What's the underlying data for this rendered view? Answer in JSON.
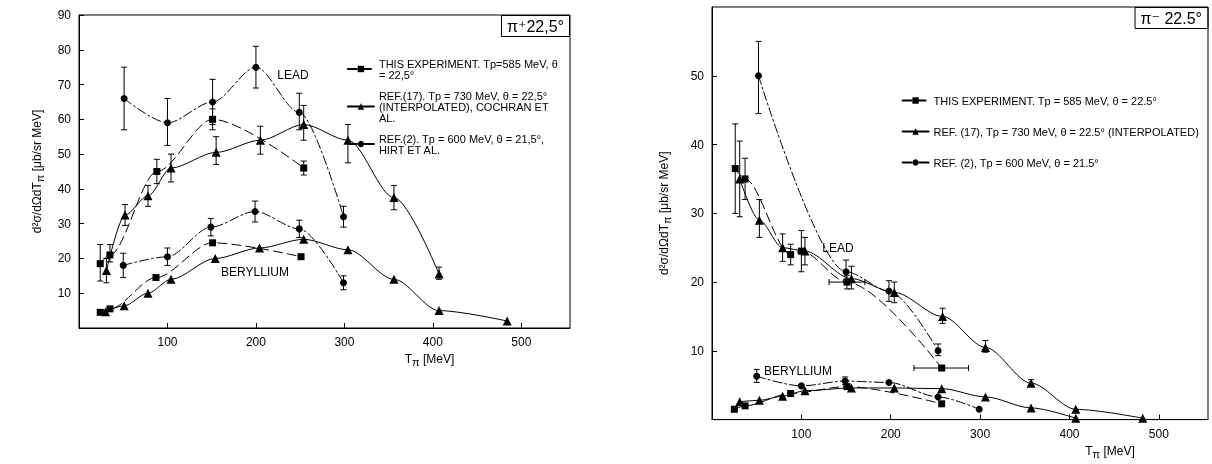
{
  "chart_data": [
    {
      "type": "line",
      "title": "π⁺22,5°",
      "xlabel": "T$_{π}$ [MeV]",
      "ylabel": "d²σ/dΩdT$_{π}$ [μb/sr MeV]",
      "xlim": [
        0,
        555
      ],
      "xticks": [
        100,
        200,
        300,
        400,
        500
      ],
      "ylim": [
        0,
        90
      ],
      "yticks": [
        10,
        20,
        30,
        40,
        50,
        60,
        70,
        80,
        90
      ],
      "legend": "top right",
      "annotations": [
        "LEAD",
        "BERYLLIUM"
      ],
      "series": [
        {
          "name": "THIS EXPERIMENT. Tp=585 MeV, θ = 22,5°",
          "color": "#000000",
          "marker": "square",
          "line_style": "dashed",
          "x": [
            24,
            35,
            88,
            151,
            254
          ],
          "values": [
            18.5,
            21,
            45,
            60,
            46
          ],
          "errors": [
            [
              13.5,
              24
            ],
            [
              19,
              24
            ],
            [
              41.5,
              48.5
            ],
            [
              57,
              63
            ],
            [
              44,
              48
            ]
          ]
        },
        {
          "color": "#000000",
          "marker": "square",
          "line_style": "dashed",
          "x": [
            24,
            35,
            87,
            151,
            251
          ],
          "values": [
            4.5,
            5.5,
            14.5,
            24.5,
            20.5
          ]
        },
        {
          "name": "REF.(17). Tp = 730 MeV, θ = 22,5° (INTERPOLATED), COCHRAN ET AL.",
          "color": "#000000",
          "marker": "triangle",
          "line_style": "solid",
          "x": [
            31,
            52,
            78,
            104,
            155,
            205,
            254,
            304,
            356,
            407
          ],
          "values": [
            16.5,
            32.5,
            38,
            46,
            50.5,
            54,
            58.5,
            54,
            37.5,
            15.5
          ],
          "errors": [
            [
              13,
              20
            ],
            [
              29.5,
              35.5
            ],
            [
              35,
              41
            ],
            [
              42,
              50
            ],
            [
              47,
              55
            ],
            [
              50,
              58
            ],
            [
              54,
              64
            ],
            [
              47.5,
              58.5
            ],
            [
              34,
              41
            ],
            [
              14,
              17.5
            ]
          ]
        },
        {
          "color": "#000000",
          "marker": "triangle",
          "line_style": "solid",
          "x": [
            30,
            51,
            78,
            104,
            154,
            204,
            254,
            304,
            356,
            407,
            484
          ],
          "values": [
            4.7,
            6.4,
            10,
            14,
            20,
            23,
            25.5,
            22.5,
            14,
            5,
            2
          ]
        },
        {
          "name": "REF.(2). Tp = 600 MeV, θ = 21,5°, HIRT ET AL.",
          "color": "#000000",
          "marker": "circle",
          "line_style": "dotted",
          "x": [
            51,
            100,
            151,
            200,
            249,
            299
          ],
          "values": [
            66,
            59,
            65,
            75,
            62,
            32
          ],
          "errors": [
            [
              57,
              75
            ],
            [
              52.5,
              66
            ],
            [
              58.5,
              71.5
            ],
            [
              69,
              81
            ],
            [
              57,
              67.5
            ],
            [
              29,
              35
            ]
          ]
        },
        {
          "color": "#000000",
          "marker": "circle",
          "line_style": "dotted",
          "x": [
            50,
            100,
            149,
            199,
            249,
            299
          ],
          "values": [
            18,
            20.5,
            29,
            33.5,
            28.5,
            13
          ],
          "errors": [
            [
              14.5,
              21.5
            ],
            [
              18,
              23
            ],
            [
              26.5,
              31.5
            ],
            [
              30.5,
              36.5
            ],
            [
              26,
              31
            ],
            [
              11,
              15
            ]
          ]
        }
      ]
    },
    {
      "type": "line",
      "title": "π⁻ 22.5°",
      "xlabel": "T$_{π}$ [MeV]",
      "ylabel": "d²σ/dΩdT$_{π}$ [μb/sr MeV]",
      "xlim": [
        0,
        555
      ],
      "xticks": [
        100,
        200,
        300,
        400,
        500
      ],
      "ylim": [
        0,
        60
      ],
      "yticks": [
        10,
        20,
        30,
        40,
        50
      ],
      "legend": "right",
      "annotations": [
        "LEAD",
        "BERYLLIUM"
      ],
      "series": [
        {
          "name": "THIS EXPERIMENT. Tp = 585 MeV, θ = 22.5°",
          "color": "#000000",
          "marker": "square",
          "line_style": "dashed",
          "x": [
            26,
            37,
            88,
            100,
            151,
            257
          ],
          "values": [
            36.5,
            35,
            24,
            24.5,
            20,
            7.5
          ],
          "errors": [
            [
              30,
              43
            ],
            [
              32,
              38
            ],
            [
              22.5,
              25.5
            ],
            [
              21.5,
              27.5
            ],
            [
              19,
              21
            ],
            null
          ],
          "xerrors": [
            null,
            null,
            null,
            null,
            [
              131,
              171
            ],
            [
              226,
              287
            ]
          ]
        },
        {
          "color": "#000000",
          "marker": "square",
          "line_style": "dashed",
          "x": [
            25,
            37,
            88,
            151,
            257
          ],
          "values": [
            1.5,
            2,
            3.8,
            4.8,
            2.3
          ]
        },
        {
          "name": "REF. (17), Tp = 730 MeV, θ = 22.5° (INTERPOLATED)",
          "color": "#000000",
          "marker": "triangle",
          "line_style": "solid",
          "x": [
            31,
            53,
            79,
            104,
            156,
            204,
            258,
            306,
            357,
            407,
            482
          ],
          "values": [
            35,
            29,
            25,
            24.5,
            20.5,
            18.5,
            15,
            10.5,
            5.3,
            1.5,
            0.2
          ],
          "errors": [
            [
              29.5,
              40.5
            ],
            [
              26.5,
              32
            ],
            [
              23,
              27
            ],
            [
              22.5,
              26.5
            ],
            [
              19,
              22.3
            ],
            [
              17,
              20
            ],
            [
              14,
              16.2
            ],
            [
              9.8,
              11.5
            ],
            [
              4.8,
              5.8
            ],
            null,
            null
          ]
        },
        {
          "color": "#000000",
          "marker": "triangle",
          "line_style": "solid",
          "x": [
            31,
            53,
            79,
            104,
            156,
            204,
            257,
            306,
            357,
            407
          ],
          "values": [
            2.6,
            2.8,
            3.4,
            4.2,
            4.6,
            4.6,
            4.5,
            3.3,
            1.7,
            0.2
          ]
        },
        {
          "name": "REF. (2), Tp = 600 MeV, θ = 21.5°",
          "color": "#000000",
          "marker": "circle",
          "line_style": "dotted",
          "x": [
            52,
            150,
            198,
            253
          ],
          "values": [
            50,
            21.5,
            18.7,
            10
          ],
          "errors": [
            [
              44.5,
              55
            ],
            [
              20.3,
              23.2
            ],
            [
              17.2,
              20.2
            ],
            [
              9.3,
              11
            ]
          ]
        },
        {
          "color": "#000000",
          "marker": "circle",
          "line_style": "dotted",
          "x": [
            50,
            100,
            149,
            198,
            253,
            299
          ],
          "values": [
            6.3,
            4.9,
            5.6,
            5.4,
            3.3,
            1.5
          ],
          "errors": [
            [
              5.4,
              7.3
            ],
            null,
            [
              5.1,
              6.2
            ],
            null,
            null,
            null
          ]
        }
      ]
    }
  ]
}
